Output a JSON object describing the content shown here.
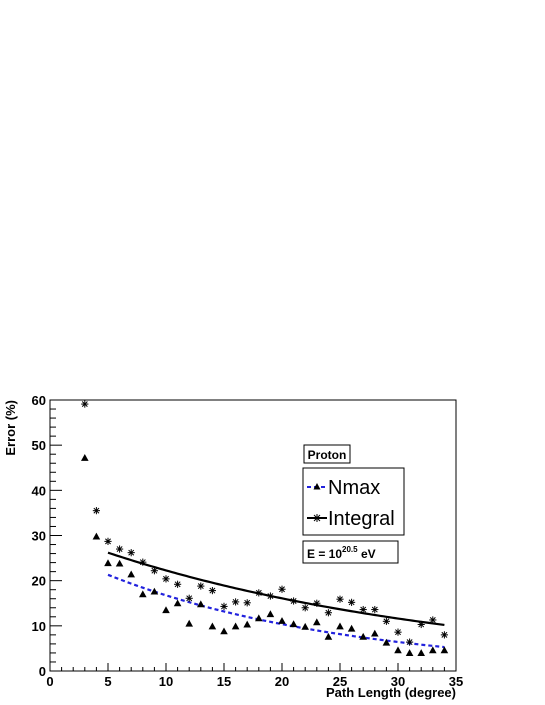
{
  "chart_data": {
    "type": "scatter",
    "xlabel": "Path Length (degree)",
    "ylabel": "Error (%)",
    "xlim": [
      0,
      35
    ],
    "ylim": [
      0,
      60
    ],
    "x_ticks": [
      0,
      5,
      10,
      15,
      20,
      25,
      30,
      35
    ],
    "y_ticks": [
      0,
      10,
      20,
      30,
      40,
      50,
      60
    ],
    "grid": false,
    "legend_placement": "right",
    "series": [
      {
        "name": "Nmax",
        "marker": "triangle",
        "color": "#000000",
        "x": [
          3,
          4,
          5,
          6,
          7,
          8,
          9,
          10,
          11,
          12,
          13,
          14,
          15,
          16,
          17,
          18,
          19,
          20,
          21,
          22,
          23,
          24,
          25,
          26,
          27,
          28,
          29,
          30,
          31,
          32,
          33,
          34
        ],
        "y": [
          47.2,
          29.8,
          23.9,
          23.8,
          21.4,
          17.0,
          17.6,
          13.5,
          15.0,
          10.5,
          14.8,
          9.9,
          8.8,
          9.9,
          10.3,
          11.7,
          12.6,
          11.1,
          10.4,
          9.8,
          10.8,
          7.6,
          9.9,
          9.4,
          7.6,
          8.3,
          6.3,
          4.6,
          4.0,
          4.0,
          4.6,
          4.6
        ]
      },
      {
        "name": "Integral",
        "marker": "star",
        "color": "#000000",
        "x": [
          3,
          4,
          5,
          6,
          7,
          8,
          9,
          10,
          11,
          12,
          13,
          14,
          15,
          16,
          17,
          18,
          19,
          20,
          21,
          22,
          23,
          24,
          25,
          26,
          27,
          28,
          29,
          30,
          31,
          32,
          33,
          34
        ],
        "y": [
          59.1,
          35.5,
          28.7,
          27.0,
          26.2,
          24.1,
          22.2,
          20.4,
          19.2,
          16.1,
          18.8,
          17.8,
          14.3,
          15.3,
          15.1,
          17.3,
          16.6,
          18.1,
          15.5,
          14.0,
          15.0,
          12.9,
          15.9,
          15.2,
          13.6,
          13.6,
          11.0,
          8.6,
          6.4,
          10.3,
          11.3,
          8.0
        ]
      }
    ],
    "fits": [
      {
        "name": "Nmax",
        "style": "dashed",
        "color": "#2222dd",
        "x": [
          5,
          34
        ],
        "form": "exponential",
        "params": {
          "a": 5,
          "y_at_a": 21.3,
          "b": 34,
          "y_at_b": 5.3
        }
      },
      {
        "name": "Integral",
        "style": "solid",
        "color": "#000000",
        "x": [
          5,
          34
        ],
        "form": "exponential",
        "params": {
          "a": 5,
          "y_at_a": 26.2,
          "b": 34,
          "y_at_b": 10.2
        }
      }
    ],
    "annotations": {
      "particle_label": "Proton",
      "energy_prefix": "E = 10",
      "energy_exponent": "20.5",
      "energy_suffix": " eV"
    }
  }
}
